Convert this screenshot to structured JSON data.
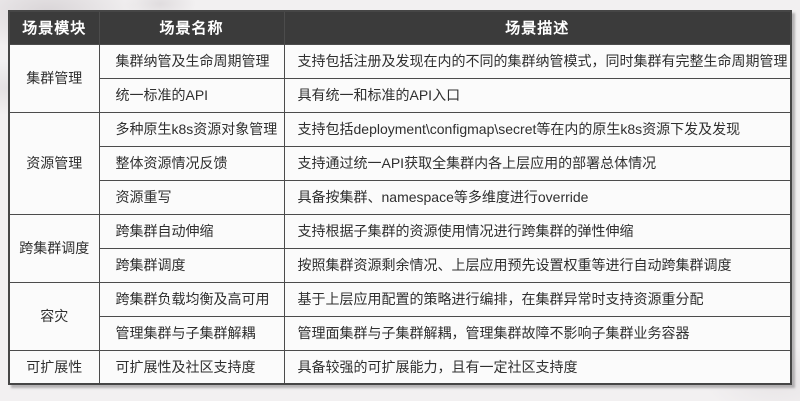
{
  "colors": {
    "header_bg": "#3b3b3b",
    "header_text": "#ffffff",
    "border": "#4c4c4c",
    "cell_bg": "#fbfbfb",
    "body_text": "#2f2f2f",
    "page_bg": "#f2f0f1"
  },
  "table": {
    "headers": {
      "module": "场景模块",
      "name": "场景名称",
      "desc": "场景描述"
    },
    "groups": [
      {
        "module": "集群管理",
        "rows": [
          {
            "name": "集群纳管及生命周期管理",
            "desc": "支持包括注册及发现在内的不同的集群纳管模式，同时集群有完整生命周期管理"
          },
          {
            "name": "统一标准的API",
            "desc": "具有统一和标准的API入口"
          }
        ]
      },
      {
        "module": "资源管理",
        "rows": [
          {
            "name": "多种原生k8s资源对象管理",
            "desc": "支持包括deployment\\configmap\\secret等在内的原生k8s资源下发及发现"
          },
          {
            "name": "整体资源情况反馈",
            "desc": "支持通过统一API获取全集群内各上层应用的部署总体情况"
          },
          {
            "name": "资源重写",
            "desc": "具备按集群、namespace等多维度进行override"
          }
        ]
      },
      {
        "module": "跨集群调度",
        "rows": [
          {
            "name": "跨集群自动伸缩",
            "desc": "支持根据子集群的资源使用情况进行跨集群的弹性伸缩"
          },
          {
            "name": "跨集群调度",
            "desc": "按照集群资源剩余情况、上层应用预先设置权重等进行自动跨集群调度"
          }
        ]
      },
      {
        "module": "容灾",
        "rows": [
          {
            "name": "跨集群负载均衡及高可用",
            "desc": "基于上层应用配置的策略进行编排，在集群异常时支持资源重分配"
          },
          {
            "name": "管理集群与子集群解耦",
            "desc": "管理面集群与子集群解耦，管理集群故障不影响子集群业务容器"
          }
        ]
      },
      {
        "module": "可扩展性",
        "rows": [
          {
            "name": "可扩展性及社区支持度",
            "desc": "具备较强的可扩展能力，且有一定社区支持度"
          }
        ]
      }
    ]
  }
}
